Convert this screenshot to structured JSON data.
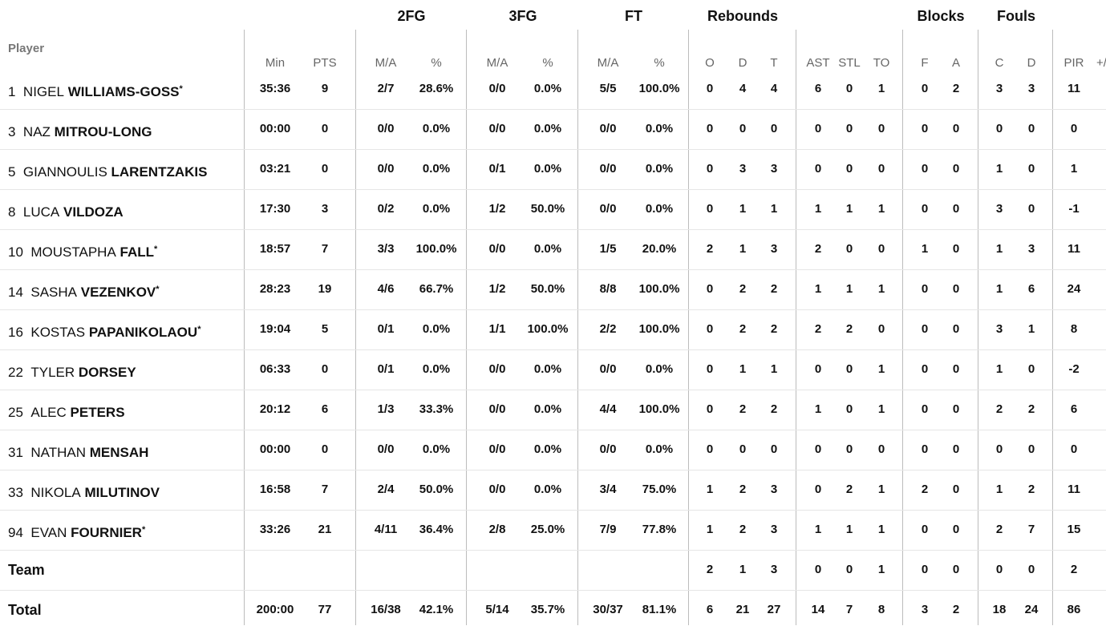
{
  "groups": {
    "two_fg": "2FG",
    "three_fg": "3FG",
    "ft": "FT",
    "rebounds": "Rebounds",
    "blocks": "Blocks",
    "fouls": "Fouls"
  },
  "subheaders": {
    "player": "Player",
    "min": "Min",
    "pts": "PTS",
    "fg2_ma": "M/A",
    "fg2_pct": "%",
    "fg3_ma": "M/A",
    "fg3_pct": "%",
    "ft_ma": "M/A",
    "ft_pct": "%",
    "reb_o": "O",
    "reb_d": "D",
    "reb_t": "T",
    "ast": "AST",
    "stl": "STL",
    "to": "TO",
    "blk_f": "F",
    "blk_a": "A",
    "foul_c": "C",
    "foul_d": "D",
    "pir": "PIR",
    "plusminus": "+/"
  },
  "rows": [
    {
      "num": "1",
      "first": "NIGEL",
      "last": "WILLIAMS-GOSS",
      "star": "*",
      "min": "35:36",
      "pts": "9",
      "fg2_ma": "2/7",
      "fg2_pct": "28.6%",
      "fg3_ma": "0/0",
      "fg3_pct": "0.0%",
      "ft_ma": "5/5",
      "ft_pct": "100.0%",
      "reb_o": "0",
      "reb_d": "4",
      "reb_t": "4",
      "ast": "6",
      "stl": "0",
      "to": "1",
      "blk_f": "0",
      "blk_a": "2",
      "foul_c": "3",
      "foul_d": "3",
      "pir": "11"
    },
    {
      "num": "3",
      "first": "NAZ",
      "last": "MITROU-LONG",
      "star": "",
      "min": "00:00",
      "pts": "0",
      "fg2_ma": "0/0",
      "fg2_pct": "0.0%",
      "fg3_ma": "0/0",
      "fg3_pct": "0.0%",
      "ft_ma": "0/0",
      "ft_pct": "0.0%",
      "reb_o": "0",
      "reb_d": "0",
      "reb_t": "0",
      "ast": "0",
      "stl": "0",
      "to": "0",
      "blk_f": "0",
      "blk_a": "0",
      "foul_c": "0",
      "foul_d": "0",
      "pir": "0"
    },
    {
      "num": "5",
      "first": "GIANNOULIS",
      "last": "LARENTZAKIS",
      "star": "",
      "min": "03:21",
      "pts": "0",
      "fg2_ma": "0/0",
      "fg2_pct": "0.0%",
      "fg3_ma": "0/1",
      "fg3_pct": "0.0%",
      "ft_ma": "0/0",
      "ft_pct": "0.0%",
      "reb_o": "0",
      "reb_d": "3",
      "reb_t": "3",
      "ast": "0",
      "stl": "0",
      "to": "0",
      "blk_f": "0",
      "blk_a": "0",
      "foul_c": "1",
      "foul_d": "0",
      "pir": "1"
    },
    {
      "num": "8",
      "first": "LUCA",
      "last": "VILDOZA",
      "star": "",
      "min": "17:30",
      "pts": "3",
      "fg2_ma": "0/2",
      "fg2_pct": "0.0%",
      "fg3_ma": "1/2",
      "fg3_pct": "50.0%",
      "ft_ma": "0/0",
      "ft_pct": "0.0%",
      "reb_o": "0",
      "reb_d": "1",
      "reb_t": "1",
      "ast": "1",
      "stl": "1",
      "to": "1",
      "blk_f": "0",
      "blk_a": "0",
      "foul_c": "3",
      "foul_d": "0",
      "pir": "-1"
    },
    {
      "num": "10",
      "first": "MOUSTAPHA",
      "last": "FALL",
      "star": "*",
      "min": "18:57",
      "pts": "7",
      "fg2_ma": "3/3",
      "fg2_pct": "100.0%",
      "fg3_ma": "0/0",
      "fg3_pct": "0.0%",
      "ft_ma": "1/5",
      "ft_pct": "20.0%",
      "reb_o": "2",
      "reb_d": "1",
      "reb_t": "3",
      "ast": "2",
      "stl": "0",
      "to": "0",
      "blk_f": "1",
      "blk_a": "0",
      "foul_c": "1",
      "foul_d": "3",
      "pir": "11"
    },
    {
      "num": "14",
      "first": "SASHA",
      "last": "VEZENKOV",
      "star": "*",
      "min": "28:23",
      "pts": "19",
      "fg2_ma": "4/6",
      "fg2_pct": "66.7%",
      "fg3_ma": "1/2",
      "fg3_pct": "50.0%",
      "ft_ma": "8/8",
      "ft_pct": "100.0%",
      "reb_o": "0",
      "reb_d": "2",
      "reb_t": "2",
      "ast": "1",
      "stl": "1",
      "to": "1",
      "blk_f": "0",
      "blk_a": "0",
      "foul_c": "1",
      "foul_d": "6",
      "pir": "24"
    },
    {
      "num": "16",
      "first": "KOSTAS",
      "last": "PAPANIKOLAOU",
      "star": "*",
      "min": "19:04",
      "pts": "5",
      "fg2_ma": "0/1",
      "fg2_pct": "0.0%",
      "fg3_ma": "1/1",
      "fg3_pct": "100.0%",
      "ft_ma": "2/2",
      "ft_pct": "100.0%",
      "reb_o": "0",
      "reb_d": "2",
      "reb_t": "2",
      "ast": "2",
      "stl": "2",
      "to": "0",
      "blk_f": "0",
      "blk_a": "0",
      "foul_c": "3",
      "foul_d": "1",
      "pir": "8"
    },
    {
      "num": "22",
      "first": "TYLER",
      "last": "DORSEY",
      "star": "",
      "min": "06:33",
      "pts": "0",
      "fg2_ma": "0/1",
      "fg2_pct": "0.0%",
      "fg3_ma": "0/0",
      "fg3_pct": "0.0%",
      "ft_ma": "0/0",
      "ft_pct": "0.0%",
      "reb_o": "0",
      "reb_d": "1",
      "reb_t": "1",
      "ast": "0",
      "stl": "0",
      "to": "1",
      "blk_f": "0",
      "blk_a": "0",
      "foul_c": "1",
      "foul_d": "0",
      "pir": "-2"
    },
    {
      "num": "25",
      "first": "ALEC",
      "last": "PETERS",
      "star": "",
      "min": "20:12",
      "pts": "6",
      "fg2_ma": "1/3",
      "fg2_pct": "33.3%",
      "fg3_ma": "0/0",
      "fg3_pct": "0.0%",
      "ft_ma": "4/4",
      "ft_pct": "100.0%",
      "reb_o": "0",
      "reb_d": "2",
      "reb_t": "2",
      "ast": "1",
      "stl": "0",
      "to": "1",
      "blk_f": "0",
      "blk_a": "0",
      "foul_c": "2",
      "foul_d": "2",
      "pir": "6"
    },
    {
      "num": "31",
      "first": "NATHAN",
      "last": "MENSAH",
      "star": "",
      "min": "00:00",
      "pts": "0",
      "fg2_ma": "0/0",
      "fg2_pct": "0.0%",
      "fg3_ma": "0/0",
      "fg3_pct": "0.0%",
      "ft_ma": "0/0",
      "ft_pct": "0.0%",
      "reb_o": "0",
      "reb_d": "0",
      "reb_t": "0",
      "ast": "0",
      "stl": "0",
      "to": "0",
      "blk_f": "0",
      "blk_a": "0",
      "foul_c": "0",
      "foul_d": "0",
      "pir": "0"
    },
    {
      "num": "33",
      "first": "NIKOLA",
      "last": "MILUTINOV",
      "star": "",
      "min": "16:58",
      "pts": "7",
      "fg2_ma": "2/4",
      "fg2_pct": "50.0%",
      "fg3_ma": "0/0",
      "fg3_pct": "0.0%",
      "ft_ma": "3/4",
      "ft_pct": "75.0%",
      "reb_o": "1",
      "reb_d": "2",
      "reb_t": "3",
      "ast": "0",
      "stl": "2",
      "to": "1",
      "blk_f": "2",
      "blk_a": "0",
      "foul_c": "1",
      "foul_d": "2",
      "pir": "11"
    },
    {
      "num": "94",
      "first": "EVAN",
      "last": "FOURNIER",
      "star": "*",
      "min": "33:26",
      "pts": "21",
      "fg2_ma": "4/11",
      "fg2_pct": "36.4%",
      "fg3_ma": "2/8",
      "fg3_pct": "25.0%",
      "ft_ma": "7/9",
      "ft_pct": "77.8%",
      "reb_o": "1",
      "reb_d": "2",
      "reb_t": "3",
      "ast": "1",
      "stl": "1",
      "to": "1",
      "blk_f": "0",
      "blk_a": "0",
      "foul_c": "2",
      "foul_d": "7",
      "pir": "15"
    }
  ],
  "team": {
    "label": "Team",
    "reb_o": "2",
    "reb_d": "1",
    "reb_t": "3",
    "ast": "0",
    "stl": "0",
    "to": "1",
    "blk_f": "0",
    "blk_a": "0",
    "foul_c": "0",
    "foul_d": "0",
    "pir": "2"
  },
  "total": {
    "label": "Total",
    "min": "200:00",
    "pts": "77",
    "fg2_ma": "16/38",
    "fg2_pct": "42.1%",
    "fg3_ma": "5/14",
    "fg3_pct": "35.7%",
    "ft_ma": "30/37",
    "ft_pct": "81.1%",
    "reb_o": "6",
    "reb_d": "21",
    "reb_t": "27",
    "ast": "14",
    "stl": "7",
    "to": "8",
    "blk_f": "3",
    "blk_a": "2",
    "foul_c": "18",
    "foul_d": "24",
    "pir": "86"
  }
}
